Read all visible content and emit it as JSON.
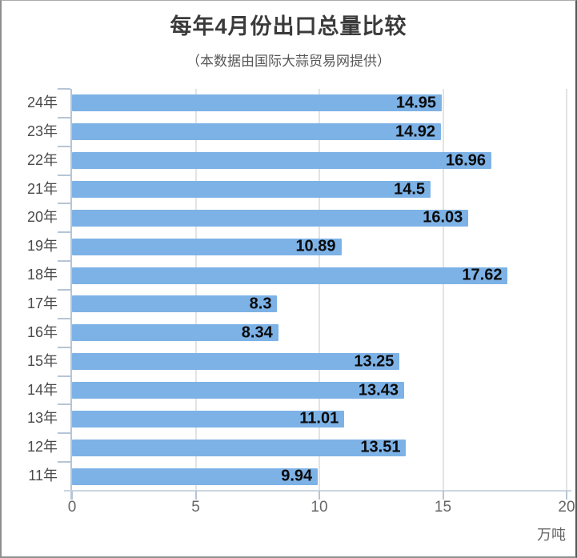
{
  "title": "每年4月份出口总量比较",
  "subtitle": "（本数据由国际大蒜贸易网提供）",
  "unit_label": "万吨",
  "chart_data": {
    "type": "bar",
    "orientation": "horizontal",
    "title": "每年4月份出口总量比较",
    "subtitle": "（本数据由国际大蒜贸易网提供）",
    "xlabel": "万吨",
    "categories": [
      "24年",
      "23年",
      "22年",
      "21年",
      "20年",
      "19年",
      "18年",
      "17年",
      "16年",
      "15年",
      "14年",
      "13年",
      "12年",
      "11年"
    ],
    "values": [
      14.95,
      14.92,
      16.96,
      14.5,
      16.03,
      10.89,
      17.62,
      8.3,
      8.34,
      13.25,
      13.43,
      11.01,
      13.51,
      9.94
    ],
    "value_labels": [
      "14.95",
      "14.92",
      "16.96",
      "14.5",
      "16.03",
      "10.89",
      "17.62",
      "8.3",
      "8.34",
      "13.25",
      "13.43",
      "11.01",
      "13.51",
      "9.94"
    ],
    "x_ticks": [
      0,
      5,
      10,
      15,
      20
    ],
    "xlim": [
      0,
      20
    ],
    "grid": true,
    "legend": false,
    "bar_color": "#7DB2E6",
    "value_label_color": "#0B0B0B",
    "axis_color": "#B6C5D6",
    "gridline_color": "#E3E3E3"
  }
}
